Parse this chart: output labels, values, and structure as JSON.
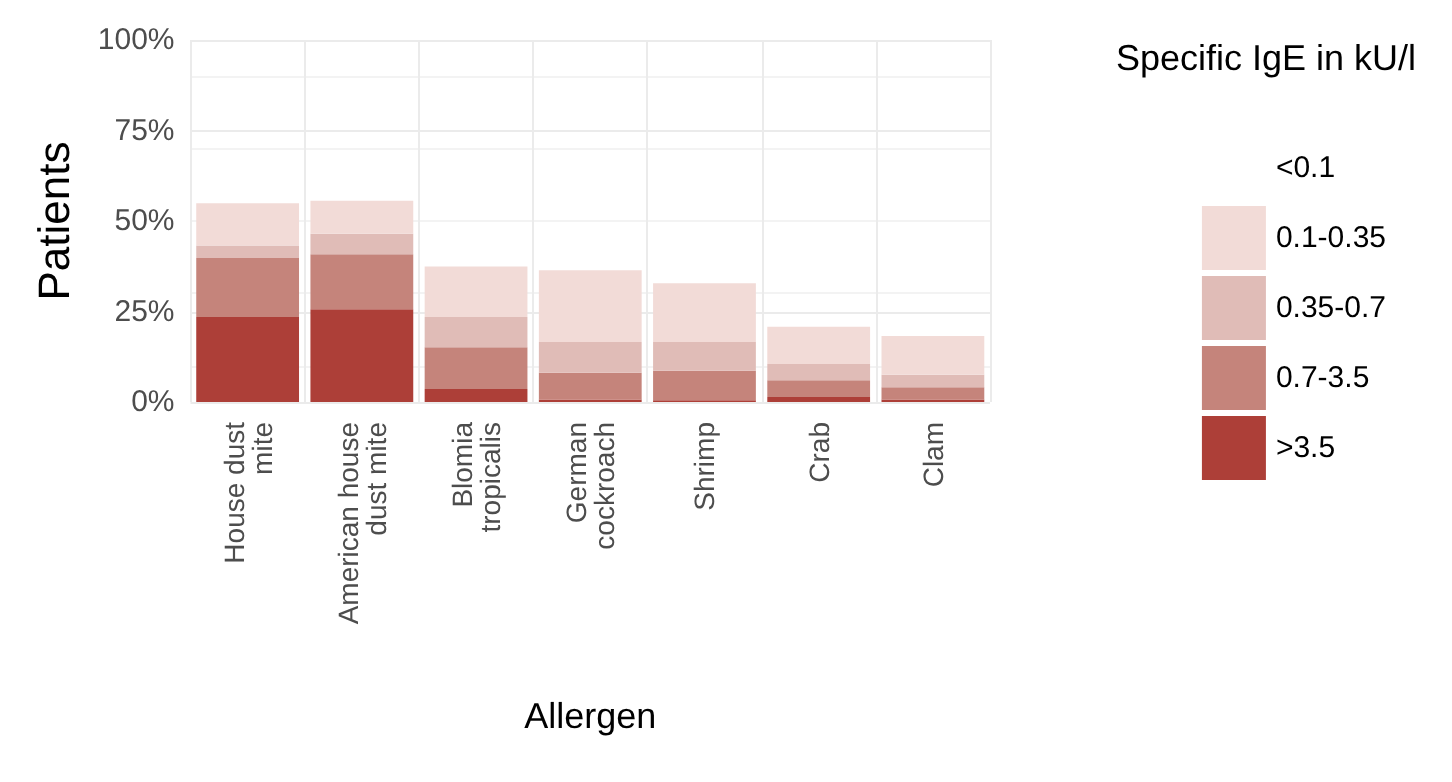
{
  "chart_data": {
    "type": "bar",
    "stacked": true,
    "xlabel": "Allergen",
    "ylabel": "Patients",
    "legend_title": "Specific IgE in kU/l",
    "legend": "right",
    "grid": true,
    "categories": [
      "House dust\nmite",
      "American house\ndust mite",
      "Blomia\ntropicalis",
      "German\ncockroach",
      "Shrimp",
      "Crab",
      "Clam"
    ],
    "ylim": [
      0,
      100
    ],
    "yticks": [
      {
        "value": 0,
        "label": "0%"
      },
      {
        "value": 25,
        "label": "25%"
      },
      {
        "value": 50,
        "label": "50%"
      },
      {
        "value": 75,
        "label": "75%"
      },
      {
        "value": 100,
        "label": "100%"
      }
    ],
    "series": [
      {
        "name": ">3.5",
        "color": "#ad3f38",
        "values": [
          23.5,
          25.6,
          3.6,
          0.7,
          0.5,
          1.4,
          0.7
        ]
      },
      {
        "name": "0.7-3.5",
        "color": "#c5847b",
        "values": [
          16.3,
          15.2,
          11.5,
          7.4,
          8.1,
          4.6,
          3.4
        ]
      },
      {
        "name": "0.35-0.7",
        "color": "#e0bcb7",
        "values": [
          3.4,
          5.7,
          8.4,
          8.5,
          8.0,
          4.5,
          3.4
        ]
      },
      {
        "name": "0.1-0.35",
        "color": "#f2dbd7",
        "values": [
          11.7,
          9.1,
          13.9,
          19.8,
          16.2,
          10.3,
          10.7
        ]
      },
      {
        "name": "<0.1",
        "values": [
          null,
          null,
          null,
          null,
          null,
          null,
          null
        ]
      }
    ]
  }
}
